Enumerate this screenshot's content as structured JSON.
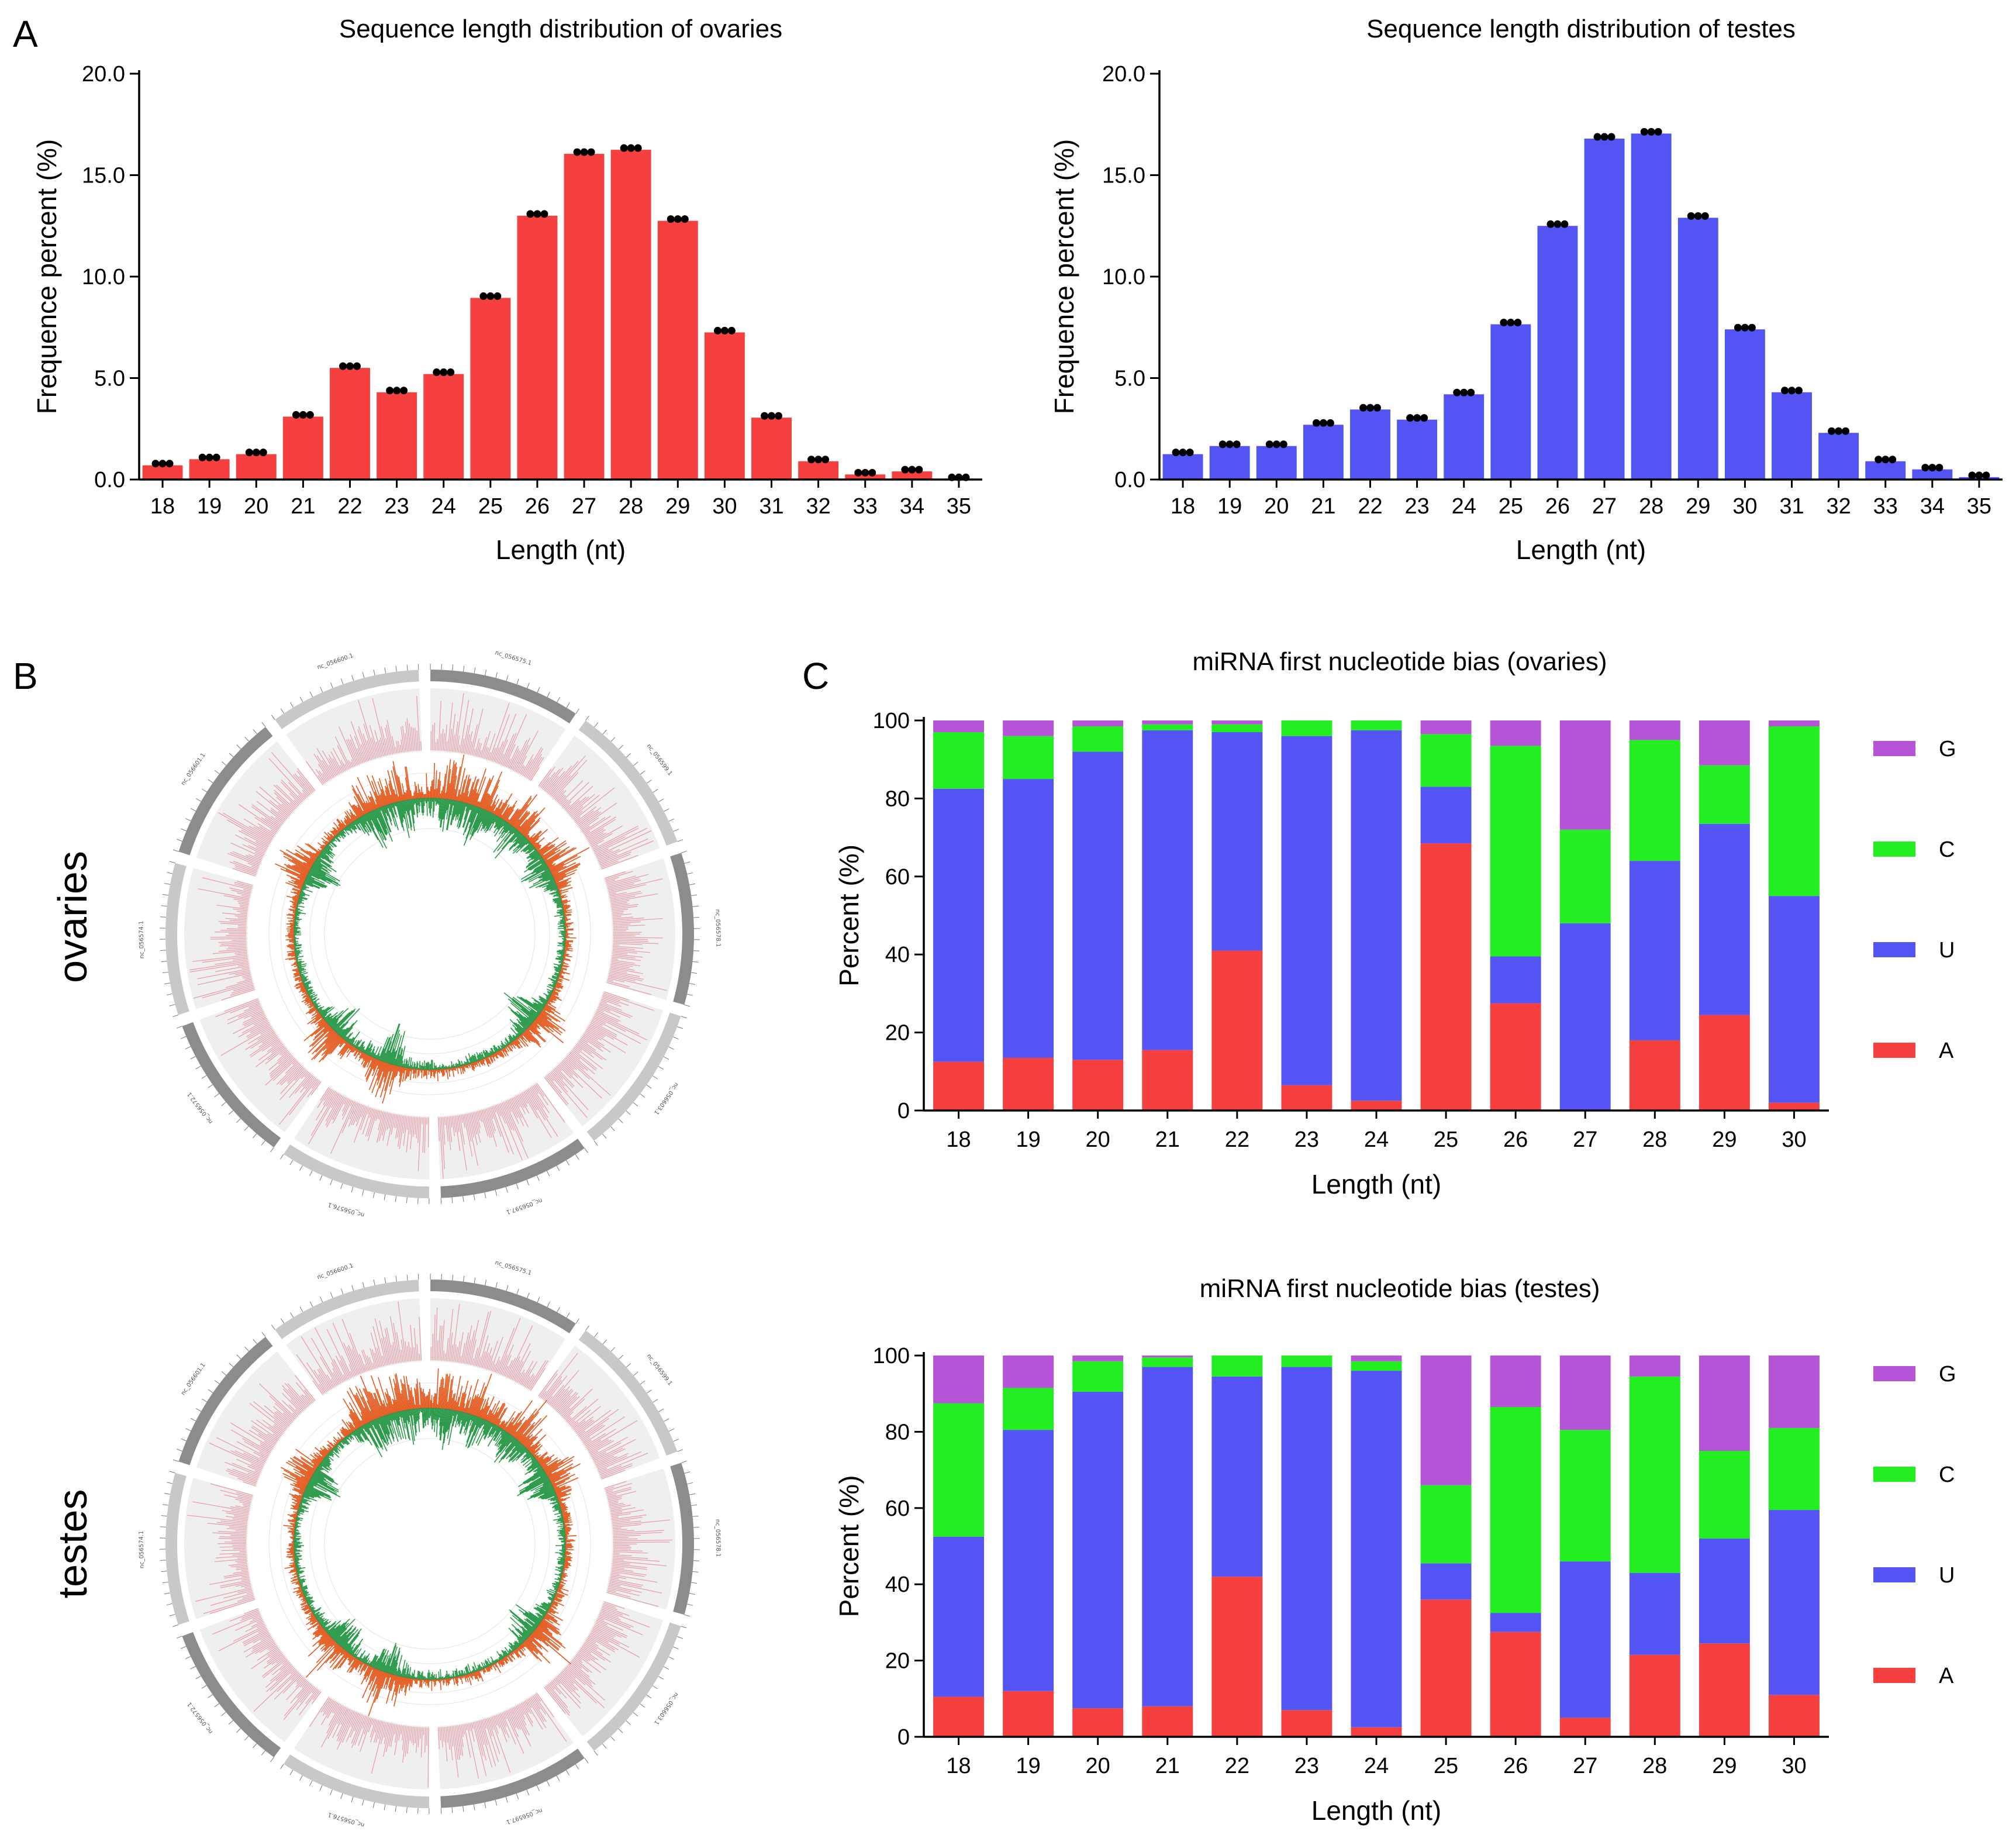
{
  "panels": {
    "a": "A",
    "b": "B",
    "c": "C"
  },
  "circos": {
    "labels": [
      "ovaries",
      "testes"
    ],
    "chromosome_labels": [
      "nc_056575.1",
      "nc_056599.1",
      "nc_056578.1",
      "nc_056603.1",
      "nc_056597.1",
      "nc_056576.1",
      "nc_056572.1",
      "nc_056574.1",
      "nc_056601.1",
      "nc_056600.1"
    ],
    "colors": {
      "up": "#e3571b",
      "down": "#2a9a4a",
      "track": "#efefef",
      "histogram": "#e8a4ae",
      "band_dark": "#8c8c8c",
      "band_light": "#c8c8c8"
    }
  },
  "chart_data": [
    {
      "id": "len_ovaries",
      "type": "bar",
      "title": "Sequence length distribution of ovaries",
      "xlabel": "Length (nt)",
      "ylabel": "Frequence percent (%)",
      "ylim": [
        0,
        20
      ],
      "yticks": [
        "0.0",
        "5.0",
        "10.0",
        "15.0",
        "20.0"
      ],
      "categories": [
        "18",
        "19",
        "20",
        "21",
        "22",
        "23",
        "24",
        "25",
        "26",
        "27",
        "28",
        "29",
        "30",
        "31",
        "32",
        "33",
        "34",
        "35"
      ],
      "values": [
        0.7,
        1.0,
        1.25,
        3.1,
        5.5,
        4.3,
        5.2,
        8.95,
        13.0,
        16.05,
        16.25,
        12.75,
        7.25,
        3.05,
        0.9,
        0.25,
        0.4,
        0.02
      ],
      "color": "#f5403f"
    },
    {
      "id": "len_testes",
      "type": "bar",
      "title": "Sequence length distribution of testes",
      "xlabel": "Length (nt)",
      "ylabel": "Frequence percent (%)",
      "ylim": [
        0,
        20
      ],
      "yticks": [
        "0.0",
        "5.0",
        "10.0",
        "15.0",
        "20.0"
      ],
      "categories": [
        "18",
        "19",
        "20",
        "21",
        "22",
        "23",
        "24",
        "25",
        "26",
        "27",
        "28",
        "29",
        "30",
        "31",
        "32",
        "33",
        "34",
        "35"
      ],
      "values": [
        1.25,
        1.65,
        1.65,
        2.7,
        3.45,
        2.95,
        4.2,
        7.65,
        12.5,
        16.8,
        17.05,
        12.9,
        7.4,
        4.3,
        2.3,
        0.9,
        0.5,
        0.12
      ],
      "color": "#5454f5"
    },
    {
      "id": "bias_ovaries",
      "type": "bar",
      "stacked": true,
      "title": "miRNA first nucleotide bias (ovaries)",
      "xlabel": "Length (nt)",
      "ylabel": "Percent (%)",
      "ylim": [
        0,
        100
      ],
      "yticks": [
        "0",
        "20",
        "40",
        "60",
        "80",
        "100"
      ],
      "categories": [
        "18",
        "19",
        "20",
        "21",
        "22",
        "23",
        "24",
        "25",
        "26",
        "27",
        "28",
        "29",
        "30"
      ],
      "legend": [
        "G",
        "C",
        "U",
        "A"
      ],
      "series": [
        {
          "name": "A",
          "color": "#f5403f",
          "values": [
            12.5,
            13.5,
            13.0,
            15.5,
            41.0,
            6.5,
            2.5,
            68.5,
            27.5,
            0.0,
            18.0,
            24.5,
            2.0
          ]
        },
        {
          "name": "U",
          "color": "#5555f5",
          "values": [
            70.0,
            71.5,
            79.0,
            82.0,
            56.0,
            89.5,
            95.0,
            14.5,
            12.0,
            48.0,
            46.0,
            49.0,
            53.0
          ]
        },
        {
          "name": "C",
          "color": "#22ee22",
          "values": [
            14.5,
            11.0,
            6.5,
            1.5,
            2.0,
            4.0,
            2.5,
            13.5,
            54.0,
            24.0,
            31.0,
            15.0,
            43.5
          ]
        },
        {
          "name": "G",
          "color": "#b554d6",
          "values": [
            3.0,
            4.0,
            1.5,
            1.0,
            1.0,
            0.0,
            0.0,
            3.5,
            6.5,
            28.0,
            5.0,
            11.5,
            1.5
          ]
        }
      ]
    },
    {
      "id": "bias_testes",
      "type": "bar",
      "stacked": true,
      "title": "miRNA first nucleotide bias (testes)",
      "xlabel": "Length (nt)",
      "ylabel": "Percent (%)",
      "ylim": [
        0,
        100
      ],
      "yticks": [
        "0",
        "20",
        "40",
        "60",
        "80",
        "100"
      ],
      "categories": [
        "18",
        "19",
        "20",
        "21",
        "22",
        "23",
        "24",
        "25",
        "26",
        "27",
        "28",
        "29",
        "30"
      ],
      "legend": [
        "G",
        "C",
        "U",
        "A"
      ],
      "series": [
        {
          "name": "A",
          "color": "#f5403f",
          "values": [
            10.5,
            12.0,
            7.5,
            8.0,
            42.0,
            7.0,
            2.5,
            36.0,
            27.5,
            5.0,
            21.5,
            24.5,
            11.0
          ]
        },
        {
          "name": "U",
          "color": "#5555f5",
          "values": [
            42.0,
            68.5,
            83.0,
            89.0,
            52.5,
            90.0,
            93.5,
            9.5,
            5.0,
            41.0,
            21.5,
            27.5,
            48.5
          ]
        },
        {
          "name": "C",
          "color": "#22ee22",
          "values": [
            35.0,
            11.0,
            8.0,
            2.5,
            5.5,
            3.0,
            2.5,
            20.5,
            54.0,
            34.5,
            51.5,
            23.0,
            21.5
          ]
        },
        {
          "name": "G",
          "color": "#b554d6",
          "values": [
            12.5,
            8.5,
            1.5,
            0.5,
            0.0,
            0.0,
            1.5,
            34.0,
            13.5,
            19.5,
            5.5,
            25.0,
            19.0
          ]
        }
      ]
    }
  ]
}
